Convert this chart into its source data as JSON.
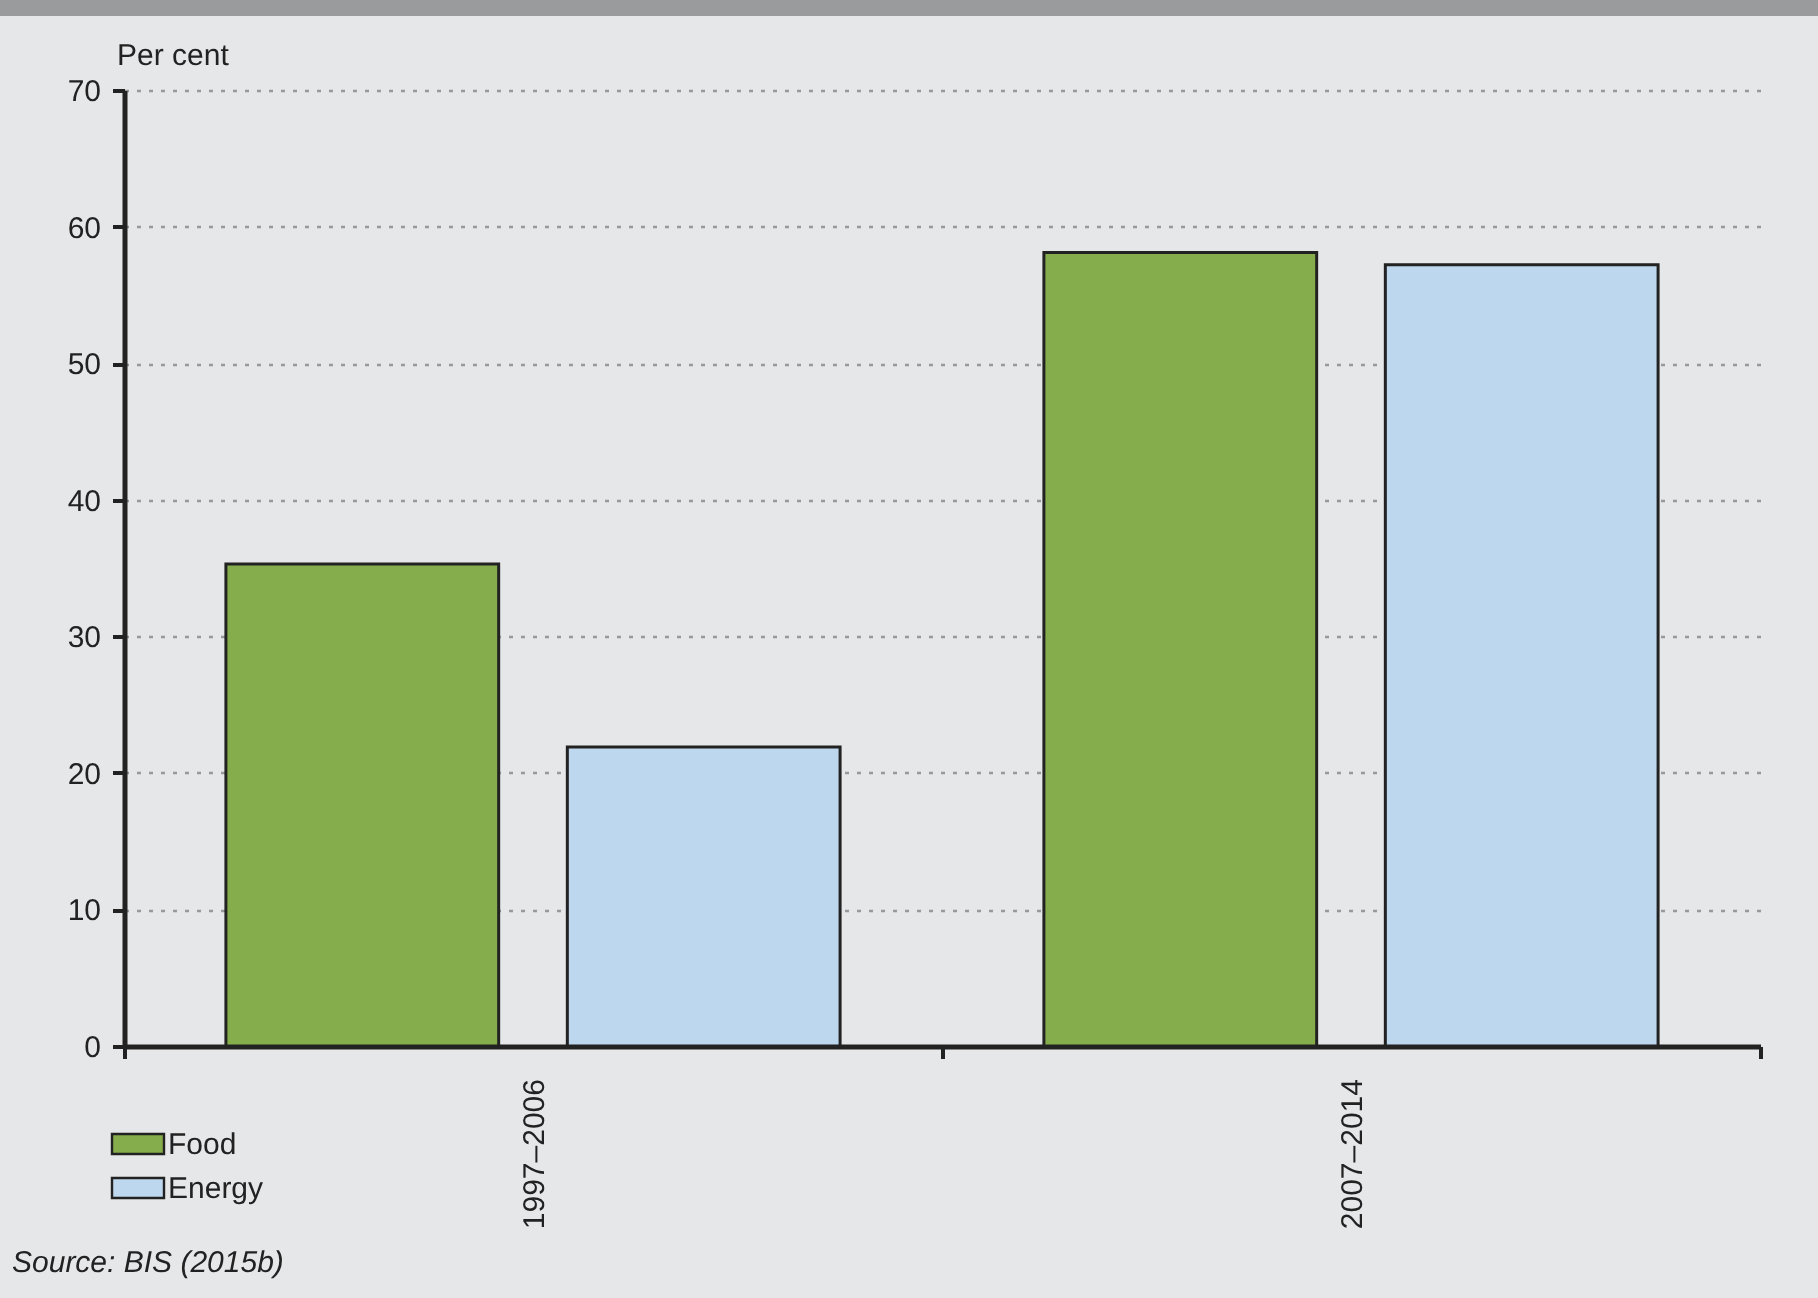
{
  "chart_data": {
    "type": "bar",
    "ylabel": "Per cent",
    "categories": [
      "1997–2006",
      "2007–2014"
    ],
    "series": [
      {
        "name": "Food",
        "color": "#86ad4b",
        "values": [
          35.3,
          58.1
        ]
      },
      {
        "name": "Energy",
        "color": "#bdd7ee",
        "values": [
          21.9,
          57.2
        ]
      }
    ],
    "ylim": [
      0,
      70
    ],
    "yticks": [
      0,
      10,
      20,
      30,
      40,
      50,
      60,
      70
    ],
    "grid": "y",
    "legend": "bottom left",
    "annotations": [
      "Source: BIS (2015b)"
    ]
  }
}
